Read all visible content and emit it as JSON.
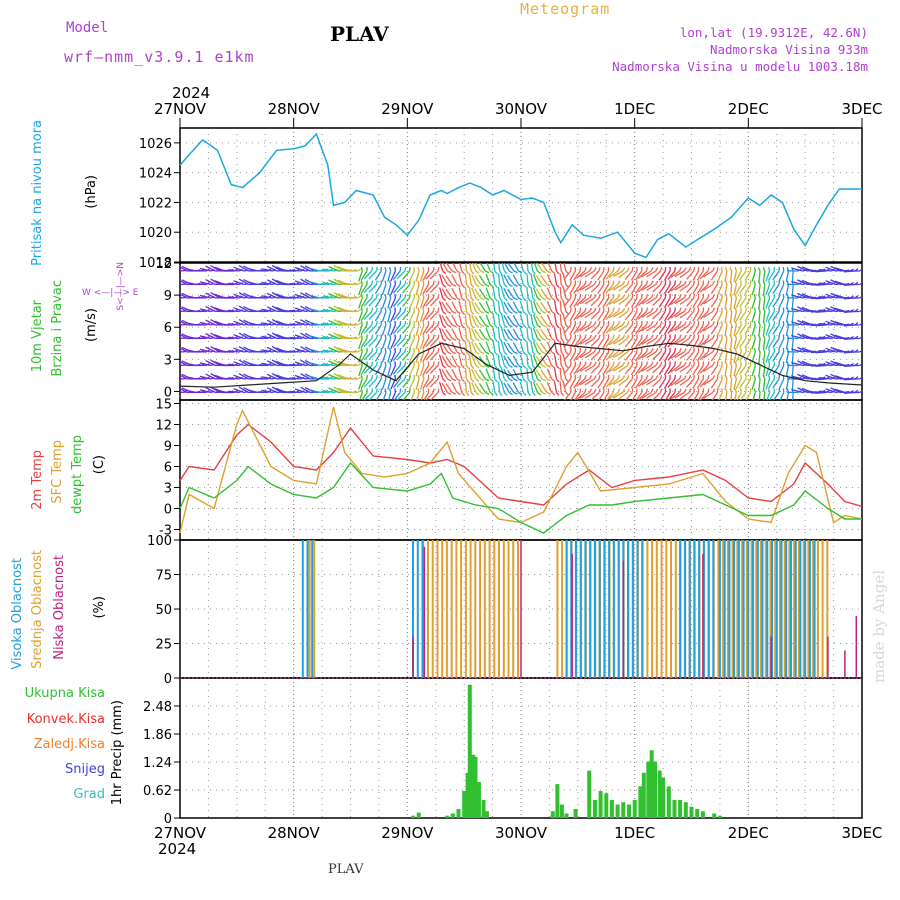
{
  "header": {
    "model_label": "Model",
    "model_name": "wrf—nmm_v3.9.1  e1km",
    "station": "PLAV",
    "title": "Meteogram",
    "lonlat": "lon,lat (19.9312E, 42.6N)",
    "altitude": "Nadmorska Visina 933m",
    "altitude_model": "Nadmorska Visina u modelu 1003.18m"
  },
  "footer": {
    "station": "PLAV",
    "credit": "made by Angel"
  },
  "time_axis": {
    "year": "2024",
    "ticks": [
      "27NOV",
      "28NOV",
      "29NOV",
      "30NOV",
      "1DEC",
      "2DEC",
      "3DEC"
    ]
  },
  "panel_labels": {
    "pressure": {
      "name": "Pritisak na nivou mora",
      "unit": "(hPa)"
    },
    "wind": {
      "name1": "10m Vjetar",
      "name2": "Brzina i Pravac",
      "unit": "(m/s)",
      "compass": "W <—|—> E",
      "compass2": "S<—|—>N"
    },
    "temp": {
      "t2m": "2m Temp",
      "sfc": "SFC Temp",
      "dew": "dewpt Temp",
      "unit": "(C)"
    },
    "cloud": {
      "high": "Visoka Oblacnost",
      "mid": "Srednja Oblacnost",
      "low": "Niska Oblacnost",
      "unit": "(%)"
    },
    "precip": {
      "unit": "1hr Precip (mm)"
    }
  },
  "precip_legend": [
    {
      "label": "Ukupna Kisa",
      "color": "#30c030"
    },
    {
      "label": "Konvek.Kisa",
      "color": "#e83030"
    },
    {
      "label": "Zaledj.Kisa",
      "color": "#f08030"
    },
    {
      "label": "Snijeg",
      "color": "#4040e0"
    },
    {
      "label": "Grad",
      "color": "#30c0c0"
    }
  ],
  "colors": {
    "pressure": "#1ba8e0",
    "t2m": "#e84040",
    "sfc": "#e0a030",
    "dew": "#30c030",
    "high_cloud": "#20a0e0",
    "mid_cloud": "#e0a030",
    "low_cloud": "#c02080",
    "precip": "#30c030",
    "precip_dark": "#208080"
  },
  "chart_data": [
    {
      "type": "line",
      "name": "pressure",
      "ylabel": "(hPa)",
      "ylim": [
        1018,
        1027
      ],
      "yticks": [
        1018,
        1020,
        1022,
        1024,
        1026
      ],
      "x_days": [
        0,
        0.08,
        0.2,
        0.33,
        0.45,
        0.55,
        0.7,
        0.85,
        1.0,
        1.1,
        1.2,
        1.3,
        1.35,
        1.45,
        1.55,
        1.6,
        1.7,
        1.8,
        1.9,
        2.0,
        2.1,
        2.2,
        2.3,
        2.35,
        2.45,
        2.55,
        2.65,
        2.75,
        2.85,
        3.0,
        3.1,
        3.2,
        3.3,
        3.35,
        3.45,
        3.55,
        3.7,
        3.85,
        4.0,
        4.1,
        4.2,
        4.3,
        4.45,
        4.55,
        4.7,
        4.85,
        5.0,
        5.1,
        5.2,
        5.3,
        5.4,
        5.5,
        5.6,
        5.7,
        5.8,
        6.0
      ],
      "values": [
        1024.5,
        1025.2,
        1026.2,
        1025.5,
        1023.2,
        1023.0,
        1024.0,
        1025.5,
        1025.6,
        1025.8,
        1026.6,
        1024.5,
        1021.8,
        1022.0,
        1022.8,
        1022.7,
        1022.5,
        1021.0,
        1020.5,
        1019.8,
        1020.8,
        1022.5,
        1022.8,
        1022.6,
        1023.0,
        1023.3,
        1023.0,
        1022.5,
        1022.8,
        1022.2,
        1022.3,
        1022.0,
        1020.0,
        1019.3,
        1020.5,
        1019.8,
        1019.6,
        1020.0,
        1018.6,
        1018.3,
        1019.5,
        1019.9,
        1019.0,
        1019.5,
        1020.2,
        1021.0,
        1022.3,
        1021.8,
        1022.5,
        1022.0,
        1020.2,
        1019.1,
        1020.5,
        1021.8,
        1022.9,
        1022.9
      ]
    },
    {
      "type": "line",
      "name": "wind",
      "ylabel": "(m/s)",
      "ylim": [
        -0.8,
        12
      ],
      "yticks": [
        0,
        3,
        6,
        9,
        12
      ],
      "series": [
        {
          "name": "speed",
          "x_days": [
            0,
            0.3,
            0.6,
            0.9,
            1.2,
            1.4,
            1.5,
            1.7,
            1.9,
            2.1,
            2.3,
            2.5,
            2.7,
            2.9,
            3.1,
            3.3,
            3.5,
            3.7,
            3.9,
            4.1,
            4.3,
            4.5,
            4.7,
            4.9,
            5.1,
            5.3,
            5.5,
            5.7,
            6.0
          ],
          "values": [
            0.5,
            0.4,
            0.6,
            0.8,
            1.0,
            2.5,
            3.5,
            2.0,
            1.0,
            3.5,
            4.5,
            4.0,
            2.5,
            1.5,
            1.8,
            4.5,
            4.2,
            4.0,
            3.8,
            4.2,
            4.5,
            4.3,
            4.0,
            3.5,
            2.5,
            1.5,
            1.0,
            0.8,
            0.6
          ]
        }
      ]
    },
    {
      "type": "line",
      "name": "temperature",
      "ylabel": "(C)",
      "ylim": [
        -4.5,
        15.5
      ],
      "yticks": [
        -3,
        0,
        3,
        6,
        9,
        12,
        15
      ],
      "series": [
        {
          "name": "2m Temp",
          "x_days": [
            0,
            0.08,
            0.3,
            0.5,
            0.6,
            0.8,
            1.0,
            1.2,
            1.35,
            1.5,
            1.7,
            2.0,
            2.2,
            2.35,
            2.5,
            2.8,
            3.0,
            3.2,
            3.4,
            3.6,
            3.8,
            4.0,
            4.3,
            4.6,
            4.8,
            5.0,
            5.2,
            5.4,
            5.5,
            5.7,
            5.85,
            6.0
          ],
          "values": [
            4.0,
            6.0,
            5.5,
            10.5,
            12.0,
            9.5,
            6.0,
            5.5,
            8.0,
            11.5,
            7.5,
            7.0,
            6.5,
            7.0,
            6.0,
            1.5,
            1.0,
            0.5,
            3.5,
            5.5,
            3.0,
            4.0,
            4.5,
            5.5,
            4.0,
            1.5,
            1.0,
            3.5,
            6.5,
            3.5,
            1.0,
            0.3
          ]
        },
        {
          "name": "SFC Temp",
          "x_days": [
            0,
            0.08,
            0.3,
            0.5,
            0.55,
            0.8,
            1.0,
            1.2,
            1.35,
            1.45,
            1.6,
            1.8,
            2.0,
            2.2,
            2.35,
            2.45,
            2.8,
            3.0,
            3.2,
            3.4,
            3.5,
            3.7,
            4.0,
            4.3,
            4.6,
            4.8,
            5.0,
            5.2,
            5.35,
            5.5,
            5.6,
            5.75,
            5.85,
            6.0
          ],
          "values": [
            -3.5,
            2.0,
            0.0,
            12.0,
            14.0,
            6.0,
            4.0,
            3.5,
            14.5,
            8.0,
            5.0,
            4.5,
            5.0,
            6.5,
            9.5,
            5.0,
            -1.5,
            -2.0,
            -0.5,
            6.0,
            8.0,
            2.5,
            3.0,
            3.5,
            5.0,
            1.0,
            -1.5,
            -2.0,
            5.0,
            9.0,
            8.0,
            -2.0,
            -1.0,
            -1.5
          ]
        },
        {
          "name": "dewpt Temp",
          "x_days": [
            0,
            0.08,
            0.3,
            0.5,
            0.6,
            0.8,
            1.0,
            1.2,
            1.35,
            1.5,
            1.7,
            2.0,
            2.2,
            2.3,
            2.4,
            2.6,
            2.8,
            3.0,
            3.2,
            3.4,
            3.6,
            3.8,
            4.0,
            4.3,
            4.6,
            4.8,
            5.0,
            5.2,
            5.4,
            5.5,
            5.7,
            5.85,
            6.0
          ],
          "values": [
            0.0,
            3.0,
            1.5,
            4.0,
            6.0,
            3.5,
            2.0,
            1.5,
            3.0,
            6.5,
            3.0,
            2.5,
            3.5,
            5.0,
            1.5,
            0.5,
            0.0,
            -2.0,
            -3.5,
            -1.0,
            0.5,
            0.5,
            1.0,
            1.5,
            2.0,
            0.5,
            -1.0,
            -1.0,
            0.5,
            2.5,
            0.0,
            -1.5,
            -1.5
          ]
        }
      ]
    },
    {
      "type": "bar",
      "name": "cloud cover",
      "ylabel": "(%)",
      "ylim": [
        0,
        100
      ],
      "yticks": [
        0,
        25,
        50,
        75,
        100
      ],
      "series": [
        {
          "name": "Visoka Oblacnost",
          "intervals_days": [
            [
              1.08,
              1.2
            ],
            [
              2.05,
              2.15
            ],
            [
              3.4,
              4.1
            ],
            [
              4.4,
              4.7
            ],
            [
              4.75,
              5.6
            ]
          ],
          "value": 100
        },
        {
          "name": "Srednja Oblacnost",
          "intervals_days": [
            [
              1.12,
              1.22
            ],
            [
              2.12,
              3.0
            ],
            [
              3.3,
              5.7
            ]
          ],
          "value": 100
        },
        {
          "name": "Niska Oblacnost",
          "x_days": [
            2.05,
            2.15,
            3.0,
            3.45,
            3.9,
            4.6,
            5.2,
            5.7,
            5.85,
            5.95
          ],
          "values": [
            30,
            95,
            100,
            90,
            85,
            90,
            30,
            30,
            20,
            45
          ]
        }
      ]
    },
    {
      "type": "bar",
      "name": "precipitation",
      "ylabel": "1hr Precip (mm)",
      "ylim": [
        0,
        3.1
      ],
      "yticks": [
        0,
        0.62,
        1.24,
        1.86,
        2.48
      ],
      "x_days": [
        2.05,
        2.1,
        2.35,
        2.4,
        2.45,
        2.5,
        2.53,
        2.55,
        2.58,
        2.6,
        2.63,
        2.67,
        2.7,
        3.28,
        3.32,
        3.36,
        3.4,
        3.48,
        3.6,
        3.65,
        3.7,
        3.75,
        3.8,
        3.85,
        3.9,
        3.95,
        4.0,
        4.05,
        4.08,
        4.12,
        4.15,
        4.18,
        4.22,
        4.25,
        4.3,
        4.35,
        4.4,
        4.45,
        4.5,
        4.55,
        4.6,
        4.7,
        4.75
      ],
      "values": [
        0.05,
        0.12,
        0.05,
        0.1,
        0.2,
        0.6,
        1.0,
        2.95,
        1.4,
        1.35,
        0.8,
        0.4,
        0.15,
        0.15,
        0.75,
        0.3,
        0.1,
        0.2,
        1.05,
        0.4,
        0.6,
        0.55,
        0.4,
        0.3,
        0.35,
        0.3,
        0.4,
        0.7,
        1.0,
        1.25,
        1.5,
        1.25,
        1.05,
        0.9,
        0.7,
        0.4,
        0.4,
        0.35,
        0.25,
        0.2,
        0.15,
        0.1,
        0.05
      ]
    }
  ]
}
